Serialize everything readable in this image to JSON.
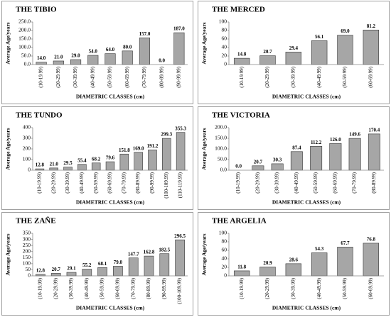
{
  "chart_data": [
    {
      "type": "bar",
      "title": "THE TIBIO",
      "y_label": "Average Age/years",
      "x_label": "DIAMETRIC CLASSES (cm)",
      "color": "#a6a6a6",
      "categories": [
        "(10-19.99)",
        "(20-29.99)",
        "(30-39.99)",
        "(40-49.99)",
        "(50-59.99)",
        "(60-69.99)",
        "(70-79.99)",
        "(80-89.99)",
        "(90-99.99)"
      ],
      "values": [
        14.0,
        21.0,
        29.0,
        54.0,
        64.0,
        80.0,
        157.0,
        0.0,
        187.0
      ],
      "value_labels": [
        "14.0",
        "21.0",
        "29.0",
        "54.0",
        "64.0",
        "80.0",
        "157.0",
        "0.0",
        "187.0"
      ],
      "ylim": [
        0,
        250
      ],
      "yticks": [
        {
          "value": 0,
          "label": "0.0"
        },
        {
          "value": 50,
          "label": "50.0"
        },
        {
          "value": 100,
          "label": "100.0"
        },
        {
          "value": 150,
          "label": "150.0"
        },
        {
          "value": 200,
          "label": "200.0"
        },
        {
          "value": 250,
          "label": "250.0"
        }
      ]
    },
    {
      "type": "bar",
      "title": "THE MERCED",
      "y_label": "Average Age/years",
      "x_label": "DIAMETRIC CLASSES (cm)",
      "color": "#a6a6a6",
      "categories": [
        "(10-19.99)",
        "(20-29.99)",
        "(30-39.99)",
        "(40-49.99)",
        "(50-59.99)",
        "(60-69.99)"
      ],
      "values": [
        14.8,
        20.7,
        29.4,
        56.1,
        69.0,
        81.2
      ],
      "value_labels": [
        "14.8",
        "20.7",
        "29.4",
        "56.1",
        "69.0",
        "81.2"
      ],
      "ylim": [
        0,
        100
      ],
      "yticks": [
        0,
        20,
        40,
        60,
        80,
        100
      ]
    },
    {
      "type": "bar",
      "title": "THE TUNDO",
      "y_label": "Average Age/years",
      "x_label": "DIAMETRIC CLASSES (cm)",
      "color": "#a6a6a6",
      "categories": [
        "(10-19.99)",
        "(20-29.99)",
        "(30-39.99)",
        "(40-49.99)",
        "(50-59.99)",
        "(60-69.99)",
        "(70-79.99)",
        "(80-89.99)",
        "(90-99.99)",
        "(100-109.99)",
        "(110-119.99)"
      ],
      "values": [
        12.8,
        21.0,
        29.5,
        55.4,
        68.2,
        79.6,
        151.8,
        169.0,
        191.2,
        299.3,
        355.3
      ],
      "value_labels": [
        "12.8",
        "21.0",
        "29.5",
        "55.4",
        "68.2",
        "79.6",
        "151.8",
        "169.0",
        "191.2",
        "299.3",
        "355.3"
      ],
      "ylim": [
        0,
        400
      ],
      "yticks": [
        0,
        100,
        200,
        300,
        400
      ]
    },
    {
      "type": "bar",
      "title": "THE VICTORIA",
      "y_label": "Average Age/years",
      "x_label": "DIAMETRIC CLASSES (cm)",
      "color": "#a6a6a6",
      "categories": [
        "(10-19.99)",
        "(20-29.99)",
        "(30-39.99)",
        "(40-49.99)",
        "(50-59.99)",
        "(60-69.99)",
        "(70-79.99)",
        "(80-89.99)"
      ],
      "values": [
        0.0,
        20.7,
        30.3,
        87.4,
        112.2,
        126.0,
        149.6,
        170.4
      ],
      "value_labels": [
        "0.0",
        "20.7",
        "30.3",
        "87.4",
        "112.2",
        "126.0",
        "149.6",
        "170.4"
      ],
      "ylim": [
        0,
        200
      ],
      "yticks": [
        {
          "value": 0,
          "label": "0.0"
        },
        {
          "value": 50,
          "label": "50.0"
        },
        {
          "value": 100,
          "label": "100.0"
        },
        {
          "value": 150,
          "label": "150.0"
        },
        {
          "value": 200,
          "label": "200.0"
        }
      ]
    },
    {
      "type": "bar",
      "title": "THE ZAÑE",
      "y_label": "Average Age/years",
      "x_label": "DIAMETRIC CLASSES (cm)",
      "color": "#a6a6a6",
      "categories": [
        "(10-19.99)",
        "(20-29.99)",
        "(30-39.99)",
        "(40-49.99)",
        "(50-59.99)",
        "(60-69.99)",
        "(70-79.99)",
        "(80-89.99)",
        "(90-99.99)",
        "(100-109.99)"
      ],
      "values": [
        12.8,
        20.7,
        29.1,
        55.2,
        68.1,
        79.0,
        147.7,
        162.8,
        182.5,
        296.5
      ],
      "value_labels": [
        "12.8",
        "20.7",
        "29.1",
        "55.2",
        "68.1",
        "79.0",
        "147.7",
        "162.8",
        "182.5",
        "296.5"
      ],
      "ylim": [
        0,
        350
      ],
      "yticks": [
        0,
        50,
        100,
        150,
        200,
        250,
        300,
        350
      ]
    },
    {
      "type": "bar",
      "title": "THE ARGELIA",
      "y_label": "Average Age/years",
      "x_label": "DIAMETRIC CLASSES (cm)",
      "color": "#a6a6a6",
      "categories": [
        "(10-19.99)",
        "(20-29.99)",
        "(30-39.99)",
        "(40-49.99)",
        "(50-59.99)",
        "(60-69.99)"
      ],
      "values": [
        11.8,
        20.9,
        28.6,
        54.3,
        67.7,
        76.8
      ],
      "ylim": [
        0,
        100
      ],
      "yticks": [
        0,
        20,
        40,
        60,
        80,
        100
      ]
    }
  ]
}
